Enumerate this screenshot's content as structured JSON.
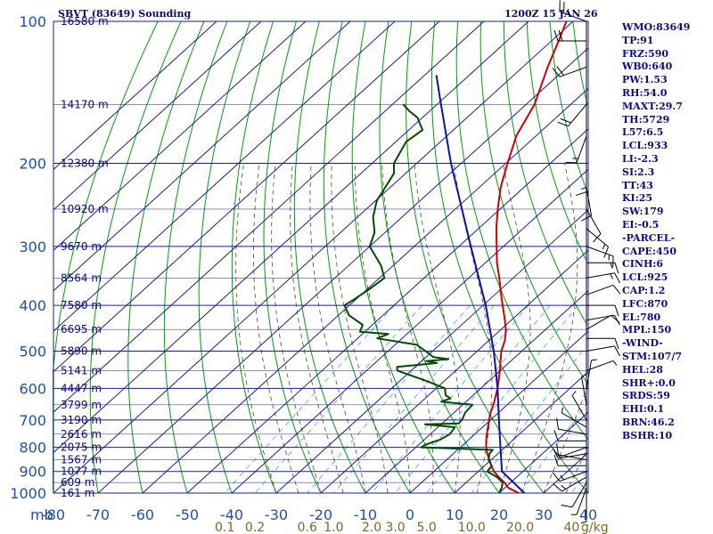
{
  "header": {
    "title": "SBVT (83649) Sounding",
    "valid": "1200Z 15 JAN 26"
  },
  "indices": [
    "WMO:83649",
    "TP:91",
    "FRZ:590",
    "WB0:640",
    "PW:1.53",
    "RH:54.0",
    "MAXT:29.7",
    "TH:5729",
    "L57:6.5",
    "LCL:933",
    "LI:-2.3",
    "SI:2.3",
    "TT:43",
    "KI:25",
    "SW:179",
    "EI:-0.5",
    "-PARCEL-",
    "CAPE:450",
    "CINH:6",
    "LCL:925",
    "CAP:1.2",
    "LFC:870",
    "EL:780",
    "MPL:150",
    "-WIND-",
    "STM:107/7",
    "HEL:28",
    "SHR+:0.0",
    "SRDS:59",
    "EHI:0.1",
    "BRN:46.2",
    "BSHR:10"
  ],
  "chart_data": {
    "type": "skew-t",
    "y_axis_unit": "mb",
    "x_axis_unit": "°C",
    "pressure_levels": [
      100,
      200,
      300,
      400,
      500,
      600,
      700,
      800,
      900,
      1000
    ],
    "temperature_ticks": [
      -80,
      -70,
      -60,
      -50,
      -40,
      -30,
      -20,
      -10,
      0,
      10,
      20,
      30,
      40
    ],
    "mixing_ratio_unit": "g/kg",
    "mixing_ratio_labels": [
      "0.1",
      "0.2",
      "0.6",
      "1.0",
      "2.0",
      "3.0",
      "5.0",
      "10.0",
      "20.0",
      "40"
    ],
    "mixing_ratio_values": [
      0.1,
      0.2,
      0.6,
      1.0,
      2.0,
      3.0,
      5.0,
      10.0,
      20.0,
      40
    ],
    "height_labels": [
      {
        "p": 100,
        "text": "16580 m"
      },
      {
        "p": 150,
        "text": "14170 m"
      },
      {
        "p": 200,
        "text": "12380 m"
      },
      {
        "p": 250,
        "text": "10920 m"
      },
      {
        "p": 300,
        "text": "9670 m"
      },
      {
        "p": 350,
        "text": "8564 m"
      },
      {
        "p": 400,
        "text": "7580 m"
      },
      {
        "p": 450,
        "text": "6695 m"
      },
      {
        "p": 500,
        "text": "5890 m"
      },
      {
        "p": 550,
        "text": "5141 m"
      },
      {
        "p": 600,
        "text": "4447 m"
      },
      {
        "p": 650,
        "text": "3799 m"
      },
      {
        "p": 700,
        "text": "3190 m"
      },
      {
        "p": 750,
        "text": "2616 m"
      },
      {
        "p": 800,
        "text": "2075 m"
      },
      {
        "p": 850,
        "text": "1567 m"
      },
      {
        "p": 900,
        "text": "1077 m"
      },
      {
        "p": 950,
        "text": "609 m"
      },
      {
        "p": 1000,
        "text": "161 m"
      }
    ],
    "series": [
      {
        "name": "Temperature",
        "color": "#cc0000",
        "points": [
          [
            1000,
            24.4
          ],
          [
            975,
            20.8
          ],
          [
            950,
            18.6
          ],
          [
            925,
            16.0
          ],
          [
            900,
            13.5
          ],
          [
            875,
            11.5
          ],
          [
            850,
            9.6
          ],
          [
            825,
            7.6
          ],
          [
            800,
            5.8
          ],
          [
            775,
            4.2
          ],
          [
            750,
            2.7
          ],
          [
            725,
            1.2
          ],
          [
            700,
            -0.3
          ],
          [
            675,
            -1.8
          ],
          [
            650,
            -3.1
          ],
          [
            625,
            -4.6
          ],
          [
            600,
            -6.2
          ],
          [
            575,
            -8.1
          ],
          [
            550,
            -10.1
          ],
          [
            525,
            -12.3
          ],
          [
            500,
            -14.6
          ],
          [
            475,
            -16.4
          ],
          [
            450,
            -18.9
          ],
          [
            425,
            -22.1
          ],
          [
            400,
            -25.6
          ],
          [
            375,
            -29.3
          ],
          [
            350,
            -33.1
          ],
          [
            325,
            -37.4
          ],
          [
            300,
            -41.5
          ],
          [
            275,
            -46.0
          ],
          [
            250,
            -50.5
          ],
          [
            225,
            -55.2
          ],
          [
            200,
            -59.6
          ],
          [
            175,
            -64.4
          ],
          [
            150,
            -68.1
          ],
          [
            125,
            -74.4
          ],
          [
            110,
            -78.4
          ],
          [
            100,
            -81.5
          ]
        ]
      },
      {
        "name": "Dewpoint",
        "color": "#004d00",
        "points": [
          [
            1000,
            20.0
          ],
          [
            975,
            19.3
          ],
          [
            950,
            18.2
          ],
          [
            925,
            15.6
          ],
          [
            900,
            12.0
          ],
          [
            875,
            11.6
          ],
          [
            850,
            9.4
          ],
          [
            825,
            8.1
          ],
          [
            810,
            7.9
          ],
          [
            800,
            -8.8
          ],
          [
            790,
            -8.5
          ],
          [
            770,
            -6.4
          ],
          [
            750,
            -5.6
          ],
          [
            725,
            -6.2
          ],
          [
            715,
            -13.6
          ],
          [
            712,
            -6.3
          ],
          [
            700,
            -6.4
          ],
          [
            675,
            -7.5
          ],
          [
            650,
            -7.8
          ],
          [
            640,
            -15.6
          ],
          [
            630,
            -14.3
          ],
          [
            620,
            -16.2
          ],
          [
            600,
            -18.0
          ],
          [
            580,
            -23.6
          ],
          [
            550,
            -33.1
          ],
          [
            540,
            -34.1
          ],
          [
            530,
            -26.1
          ],
          [
            525,
            -29.0
          ],
          [
            520,
            -24.5
          ],
          [
            515,
            -28.3
          ],
          [
            500,
            -31.6
          ],
          [
            485,
            -35.1
          ],
          [
            470,
            -45.6
          ],
          [
            460,
            -44.2
          ],
          [
            455,
            -51.1
          ],
          [
            440,
            -52.2
          ],
          [
            420,
            -57.6
          ],
          [
            400,
            -61.1
          ],
          [
            390,
            -60.5
          ],
          [
            370,
            -59.5
          ],
          [
            350,
            -58.9
          ],
          [
            330,
            -62.6
          ],
          [
            300,
            -70.0
          ],
          [
            280,
            -72.4
          ],
          [
            260,
            -76.5
          ],
          [
            240,
            -79.7
          ],
          [
            210,
            -82.6
          ],
          [
            200,
            -85.1
          ],
          [
            180,
            -87.7
          ],
          [
            170,
            -86.9
          ],
          [
            160,
            -91.1
          ],
          [
            155,
            -94.5
          ],
          [
            150,
            -97.6
          ]
        ]
      },
      {
        "name": "Parcel",
        "color": "#0a14a0",
        "points": [
          [
            1000,
            25.7
          ],
          [
            900,
            15.3
          ],
          [
            800,
            9.0
          ],
          [
            700,
            1.9
          ],
          [
            600,
            -6.2
          ],
          [
            500,
            -16.3
          ],
          [
            400,
            -29.4
          ],
          [
            300,
            -47.3
          ],
          [
            200,
            -72.3
          ],
          [
            150,
            -89.1
          ],
          [
            130,
            -97.4
          ]
        ]
      }
    ],
    "wind_profile": [
      {
        "p": 1000,
        "dir": 180,
        "spd": 5
      },
      {
        "p": 975,
        "dir": 200,
        "spd": 5
      },
      {
        "p": 950,
        "dir": 210,
        "spd": 10
      },
      {
        "p": 925,
        "dir": 240,
        "spd": 15
      },
      {
        "p": 900,
        "dir": 250,
        "spd": 15
      },
      {
        "p": 875,
        "dir": 270,
        "spd": 10
      },
      {
        "p": 850,
        "dir": 280,
        "spd": 10
      },
      {
        "p": 825,
        "dir": 260,
        "spd": 10
      },
      {
        "p": 800,
        "dir": 250,
        "spd": 5
      },
      {
        "p": 775,
        "dir": 270,
        "spd": 10
      },
      {
        "p": 750,
        "dir": 280,
        "spd": 10
      },
      {
        "p": 725,
        "dir": 300,
        "spd": 5
      },
      {
        "p": 700,
        "dir": 330,
        "spd": 5
      },
      {
        "p": 650,
        "dir": 350,
        "spd": 5
      },
      {
        "p": 600,
        "dir": 10,
        "spd": 5
      },
      {
        "p": 550,
        "dir": 70,
        "spd": 5
      },
      {
        "p": 500,
        "dir": 80,
        "spd": 10
      },
      {
        "p": 470,
        "dir": 90,
        "spd": 10
      },
      {
        "p": 450,
        "dir": 60,
        "spd": 10
      },
      {
        "p": 430,
        "dir": 80,
        "spd": 10
      },
      {
        "p": 400,
        "dir": 90,
        "spd": 10
      },
      {
        "p": 380,
        "dir": 70,
        "spd": 10
      },
      {
        "p": 350,
        "dir": 80,
        "spd": 15
      },
      {
        "p": 325,
        "dir": 90,
        "spd": 15
      },
      {
        "p": 300,
        "dir": 110,
        "spd": 15
      },
      {
        "p": 275,
        "dir": 130,
        "spd": 15
      },
      {
        "p": 250,
        "dir": 150,
        "spd": 10
      },
      {
        "p": 225,
        "dir": 170,
        "spd": 10
      },
      {
        "p": 200,
        "dir": 180,
        "spd": 15
      },
      {
        "p": 175,
        "dir": 200,
        "spd": 15
      },
      {
        "p": 150,
        "dir": 220,
        "spd": 20
      },
      {
        "p": 125,
        "dir": 250,
        "spd": 20
      },
      {
        "p": 110,
        "dir": 270,
        "spd": 20
      },
      {
        "p": 100,
        "dir": 290,
        "spd": 25
      }
    ]
  }
}
